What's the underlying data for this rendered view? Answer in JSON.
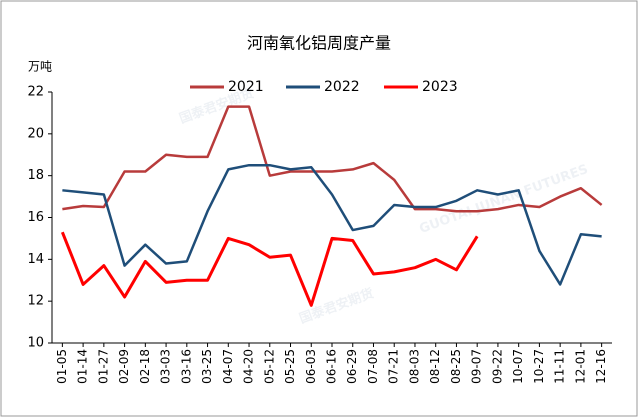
{
  "chart_data": {
    "type": "line",
    "title": "河南氧化铝周度产量",
    "y_unit": "万吨",
    "watermark": "国泰君安期货",
    "watermark_en": "GUOTAI JUNAN FUTURES",
    "categories": [
      "01-05",
      "01-14",
      "01-27",
      "02-09",
      "02-18",
      "03-03",
      "03-16",
      "03-25",
      "04-07",
      "04-20",
      "05-12",
      "05-25",
      "06-03",
      "06-16",
      "06-29",
      "07-08",
      "07-21",
      "08-03",
      "08-12",
      "08-25",
      "09-07",
      "09-22",
      "10-07",
      "10-27",
      "11-11",
      "12-01",
      "12-16"
    ],
    "series": [
      {
        "name": "2021",
        "color": "#b83b3b",
        "values": [
          16.4,
          16.55,
          16.5,
          18.2,
          18.2,
          19.0,
          18.9,
          18.9,
          21.3,
          21.3,
          18.0,
          18.2,
          18.2,
          18.2,
          18.3,
          18.6,
          17.8,
          16.4,
          16.4,
          16.3,
          16.3,
          16.4,
          16.6,
          16.5,
          17.0,
          17.4,
          16.6
        ]
      },
      {
        "name": "2022",
        "color": "#1f4e79",
        "values": [
          17.3,
          17.2,
          17.1,
          13.7,
          14.7,
          13.8,
          13.9,
          16.3,
          18.3,
          18.5,
          18.5,
          18.3,
          18.4,
          17.1,
          15.4,
          15.6,
          16.6,
          16.5,
          16.5,
          16.8,
          17.3,
          17.1,
          17.3,
          14.4,
          12.8,
          15.2,
          15.1
        ]
      },
      {
        "name": "2023",
        "color": "#ff0000",
        "values": [
          15.3,
          12.8,
          13.7,
          12.2,
          13.9,
          12.9,
          13.0,
          13.0,
          15.0,
          14.7,
          14.1,
          14.2,
          11.8,
          15.0,
          14.9,
          13.3,
          13.4,
          13.6,
          14.0,
          13.5,
          15.1,
          null,
          null,
          null,
          null,
          null,
          null
        ]
      }
    ],
    "ylim": [
      10,
      22
    ],
    "yticks": [
      10,
      12,
      14,
      16,
      18,
      20,
      22
    ],
    "legend": "top"
  }
}
